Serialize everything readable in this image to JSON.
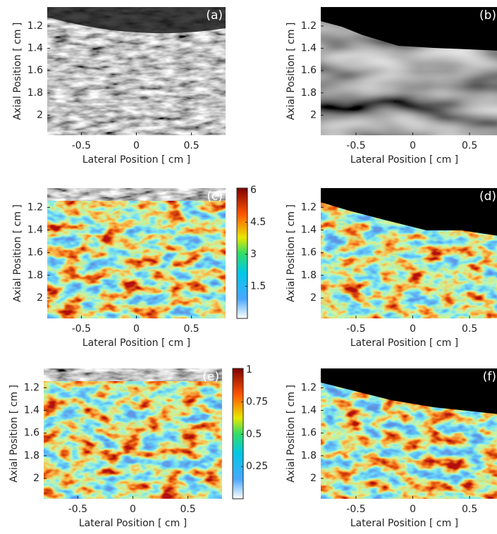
{
  "chart_data": [
    {
      "type": "image",
      "title": "(a)",
      "colormap": "gray",
      "xlabel": "Lateral Position [ cm ]",
      "ylabel": "Axial Position [ cm ]",
      "xlim": [
        -0.81,
        0.81
      ],
      "ylim": [
        1.03,
        2.18
      ],
      "xticks": [
        -0.5,
        0,
        0.5
      ],
      "yticks": [
        1.2,
        1.4,
        1.6,
        1.8,
        2
      ]
    },
    {
      "type": "image",
      "title": "(b)",
      "colormap": "gray",
      "masked": true,
      "xlabel": "Lateral Position [ cm ]",
      "ylabel": "Axial Position [ cm ]",
      "xlim": [
        -0.81,
        0.76
      ],
      "ylim": [
        1.03,
        2.18
      ],
      "xticks": [
        -0.5,
        0,
        0.5
      ],
      "yticks": [
        1.2,
        1.4,
        1.6,
        1.8,
        2
      ]
    },
    {
      "type": "image",
      "title": "(c)",
      "colormap": "jet",
      "xlabel": "Lateral Position [ cm ]",
      "ylabel": "Axial Position [ cm ]",
      "xlim": [
        -0.81,
        0.81
      ],
      "ylim": [
        1.03,
        2.18
      ],
      "xticks": [
        -0.5,
        0,
        0.5
      ],
      "yticks": [
        1.2,
        1.4,
        1.6,
        1.8,
        2
      ],
      "colorbar": {
        "clim": [
          0,
          6.1
        ],
        "ticks": [
          1.5,
          3,
          4.5,
          6
        ]
      }
    },
    {
      "type": "image",
      "title": "(d)",
      "colormap": "jet",
      "masked": true,
      "xlabel": "Lateral Position [ cm ]",
      "ylabel": "Axial Position [ cm ]",
      "xlim": [
        -0.81,
        0.76
      ],
      "ylim": [
        1.03,
        2.18
      ],
      "xticks": [
        -0.5,
        0,
        0.5
      ],
      "yticks": [
        1.2,
        1.4,
        1.6,
        1.8,
        2
      ]
    },
    {
      "type": "image",
      "title": "(e)",
      "colormap": "jet",
      "xlabel": "Lateral Position [ cm ]",
      "ylabel": "Axial Position [ cm ]",
      "xlim": [
        -0.81,
        0.81
      ],
      "ylim": [
        1.03,
        2.18
      ],
      "xticks": [
        -0.5,
        0,
        0.5
      ],
      "yticks": [
        1.2,
        1.4,
        1.6,
        1.8,
        2
      ],
      "colorbar": {
        "clim": [
          0,
          1.01
        ],
        "ticks": [
          0.25,
          0.5,
          0.75,
          1
        ]
      }
    },
    {
      "type": "image",
      "title": "(f)",
      "colormap": "jet",
      "masked": true,
      "xlabel": "Lateral Position [ cm ]",
      "ylabel": "Axial Position [ cm ]",
      "xlim": [
        -0.81,
        0.76
      ],
      "ylim": [
        1.03,
        2.18
      ],
      "xticks": [
        -0.5,
        0,
        0.5
      ],
      "yticks": [
        1.2,
        1.4,
        1.6,
        1.8,
        2
      ]
    }
  ]
}
